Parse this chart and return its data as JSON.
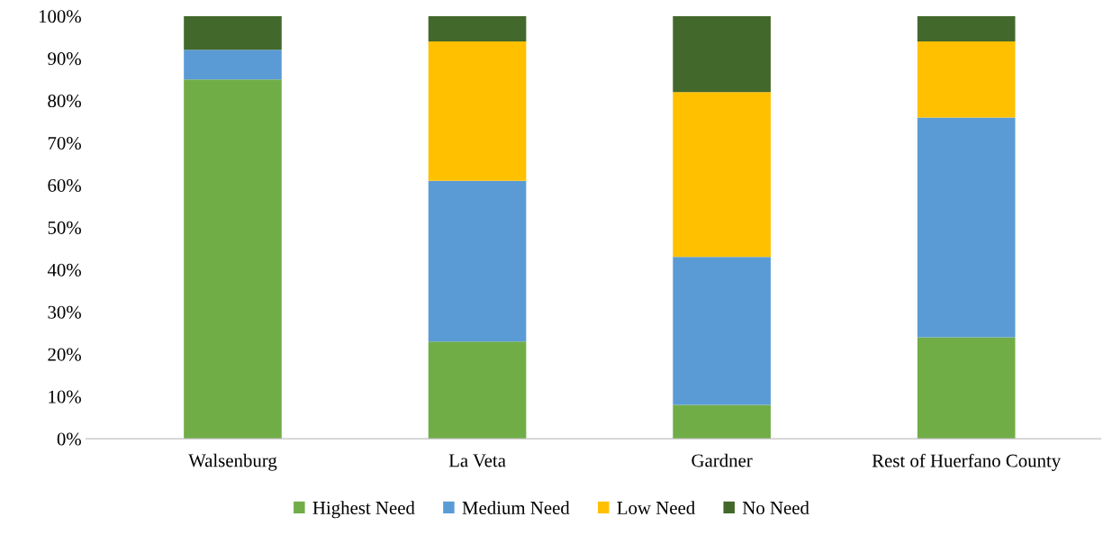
{
  "chart_data": {
    "type": "bar",
    "stacked": true,
    "categories": [
      "Walsenburg",
      "La Veta",
      "Gardner",
      "Rest of Huerfano County"
    ],
    "series": [
      {
        "name": "Highest Need",
        "color": "#70ad47",
        "values": [
          85,
          23,
          8,
          24
        ]
      },
      {
        "name": "Medium Need",
        "color": "#5b9bd5",
        "values": [
          7,
          38,
          35,
          52
        ]
      },
      {
        "name": "Low Need",
        "color": "#ffc000",
        "values": [
          0,
          33,
          39,
          18
        ]
      },
      {
        "name": "No Need",
        "color": "#43682b",
        "values": [
          8,
          6,
          18,
          6
        ]
      }
    ],
    "ylim": [
      0,
      100
    ],
    "yticks": [
      {
        "value": 0,
        "label": "0%"
      },
      {
        "value": 10,
        "label": "10%"
      },
      {
        "value": 20,
        "label": "20%"
      },
      {
        "value": 30,
        "label": "30%"
      },
      {
        "value": 40,
        "label": "40%"
      },
      {
        "value": 50,
        "label": "50%"
      },
      {
        "value": 60,
        "label": "60%"
      },
      {
        "value": 70,
        "label": "70%"
      },
      {
        "value": 80,
        "label": "80%"
      },
      {
        "value": 90,
        "label": "90%"
      },
      {
        "value": 100,
        "label": "100%"
      }
    ],
    "grid": false,
    "legend": "bottom"
  }
}
